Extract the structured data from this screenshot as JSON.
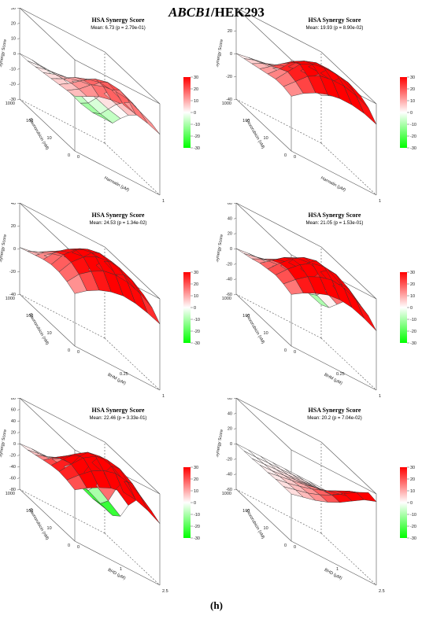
{
  "header": {
    "gene": "ABCB1",
    "cell_line": "/HEK293"
  },
  "figure_label": "(h)",
  "colorbar": {
    "ticks": [
      "30",
      "20",
      "10",
      "0",
      "-10",
      "-20",
      "-30"
    ],
    "max_color": "#ff0000",
    "min_color": "#00ff00"
  },
  "chart_data": [
    {
      "type": "surface3d",
      "title": "HSA Synergy Score",
      "subtitle": "Mean: 6.73 (p = 2.79e-01)",
      "zlabel": "Synergy Score",
      "xlabel": "Daunorubicin (nM)",
      "ylabel": "Harmalin (μM)",
      "zticks": [
        "30",
        "20",
        "10",
        "0",
        "-10",
        "-20",
        "-30"
      ],
      "zlim": [
        -30,
        30
      ],
      "xticks": [
        "1000",
        "100",
        "10",
        "0"
      ],
      "yticks": [
        "0",
        "1"
      ],
      "values": [
        [
          6,
          10,
          14,
          16,
          17,
          15,
          13,
          10
        ],
        [
          5,
          10,
          17,
          20,
          21,
          20,
          16,
          12
        ],
        [
          4,
          9,
          15,
          20,
          22,
          21,
          17,
          12
        ],
        [
          3,
          7,
          12,
          15,
          17,
          16,
          12,
          8
        ],
        [
          2,
          5,
          7,
          9,
          10,
          9,
          6,
          3
        ],
        [
          1,
          3,
          4,
          4,
          3,
          1,
          -2,
          -4
        ],
        [
          0,
          1,
          1,
          0,
          -3,
          -7,
          -10,
          -12
        ],
        [
          0,
          0,
          -1,
          -4,
          -8,
          -12,
          -14,
          -14
        ]
      ]
    },
    {
      "type": "surface3d",
      "title": "HSA Synergy Score",
      "subtitle": "Mean: 19.93 (p = 8.90e-02)",
      "zlabel": "Synergy Score",
      "xlabel": "Doxorubicin (nM)",
      "ylabel": "Harmalin (μM)",
      "zticks": [
        "40",
        "20",
        "0",
        "-20",
        "-40"
      ],
      "zlim": [
        -40,
        40
      ],
      "xticks": [
        "1000",
        "100",
        "10",
        "0"
      ],
      "yticks": [
        "0",
        "1"
      ],
      "values": [
        [
          8,
          16,
          22,
          26,
          28,
          28,
          26,
          22
        ],
        [
          10,
          20,
          30,
          36,
          38,
          38,
          35,
          30
        ],
        [
          10,
          22,
          34,
          40,
          42,
          42,
          40,
          34
        ],
        [
          8,
          18,
          30,
          36,
          40,
          40,
          38,
          32
        ],
        [
          6,
          14,
          22,
          28,
          30,
          30,
          28,
          24
        ],
        [
          4,
          10,
          14,
          18,
          20,
          20,
          18,
          14
        ],
        [
          2,
          6,
          8,
          10,
          11,
          11,
          10,
          8
        ],
        [
          0,
          2,
          3,
          4,
          4,
          4,
          3,
          2
        ]
      ]
    },
    {
      "type": "surface3d",
      "title": "HSA Synergy Score",
      "subtitle": "Mean: 24.53 (p = 1.34e-02)",
      "zlabel": "Synergy Score",
      "xlabel": "Daunorubicin (nM)",
      "ylabel": "BHM (μM)",
      "zticks": [
        "40",
        "20",
        "0",
        "-20",
        "-40"
      ],
      "zlim": [
        -40,
        40
      ],
      "xticks": [
        "1000",
        "100",
        "10",
        "0"
      ],
      "yticks": [
        "0",
        "0.25",
        "1"
      ],
      "values": [
        [
          6,
          14,
          20,
          24,
          26,
          25,
          22,
          18
        ],
        [
          10,
          22,
          30,
          36,
          38,
          37,
          33,
          26
        ],
        [
          12,
          26,
          36,
          42,
          44,
          43,
          38,
          30
        ],
        [
          12,
          26,
          36,
          42,
          44,
          42,
          36,
          28
        ],
        [
          10,
          22,
          30,
          36,
          38,
          36,
          30,
          22
        ],
        [
          7,
          16,
          22,
          26,
          28,
          26,
          22,
          16
        ],
        [
          4,
          9,
          13,
          16,
          17,
          16,
          13,
          9
        ],
        [
          1,
          3,
          5,
          6,
          6,
          6,
          5,
          3
        ]
      ]
    },
    {
      "type": "surface3d",
      "title": "HSA Synergy Score",
      "subtitle": "Mean: 21.05 (p = 1.53e-01)",
      "zlabel": "Synergy Score",
      "xlabel": "Doxorubicin (nM)",
      "ylabel": "BHM (μM)",
      "zticks": [
        "60",
        "40",
        "20",
        "0",
        "-20",
        "-40",
        "-60"
      ],
      "zlim": [
        -60,
        60
      ],
      "xticks": [
        "1000",
        "100",
        "10",
        "0"
      ],
      "yticks": [
        "0",
        "0.25",
        "1"
      ],
      "values": [
        [
          8,
          18,
          26,
          32,
          34,
          32,
          26,
          18
        ],
        [
          12,
          26,
          38,
          46,
          50,
          48,
          40,
          28
        ],
        [
          14,
          30,
          44,
          54,
          58,
          56,
          46,
          32
        ],
        [
          12,
          28,
          42,
          52,
          56,
          52,
          42,
          28
        ],
        [
          10,
          22,
          34,
          42,
          44,
          40,
          30,
          18
        ],
        [
          6,
          14,
          22,
          26,
          26,
          22,
          14,
          4
        ],
        [
          3,
          7,
          10,
          12,
          10,
          6,
          -2,
          -10
        ],
        [
          0,
          2,
          3,
          2,
          0,
          -4,
          -10,
          -16
        ]
      ]
    },
    {
      "type": "surface3d",
      "title": "HSA Synergy Score",
      "subtitle": "Mean: 22.46 (p = 3.33e-01)",
      "zlabel": "Synergy Score",
      "xlabel": "Daunorubicin (nM)",
      "ylabel": "BHD (μM)",
      "zticks": [
        "80",
        "60",
        "40",
        "20",
        "0",
        "-20",
        "-40",
        "-60",
        "-80"
      ],
      "zlim": [
        -80,
        80
      ],
      "xticks": [
        "1000",
        "100",
        "10",
        "0"
      ],
      "yticks": [
        "0",
        "1",
        "2.5"
      ],
      "values": [
        [
          10,
          24,
          36,
          46,
          50,
          48,
          40,
          28
        ],
        [
          14,
          34,
          52,
          64,
          70,
          66,
          54,
          36
        ],
        [
          16,
          40,
          62,
          76,
          80,
          76,
          62,
          40
        ],
        [
          14,
          36,
          56,
          70,
          74,
          68,
          52,
          30
        ],
        [
          10,
          26,
          40,
          50,
          50,
          42,
          26,
          8
        ],
        [
          6,
          14,
          22,
          24,
          20,
          8,
          -8,
          -24
        ],
        [
          2,
          6,
          8,
          6,
          -2,
          -14,
          -26,
          -36
        ],
        [
          0,
          2,
          2,
          -2,
          -10,
          -20,
          -30,
          -36
        ]
      ]
    },
    {
      "type": "surface3d",
      "title": "HSA Synergy Score",
      "subtitle": "Mean: 20.2 (p = 7.04e-02)",
      "zlabel": "Synergy Score",
      "xlabel": "Doxorubicin (nM)",
      "ylabel": "BHD (μM)",
      "zticks": [
        "60",
        "40",
        "20",
        "0",
        "-20",
        "-40",
        "-60"
      ],
      "zlim": [
        -60,
        60
      ],
      "xticks": [
        "1000",
        "100",
        "10",
        "0"
      ],
      "yticks": [
        "0",
        "1",
        "2.5"
      ],
      "values": [
        [
          2,
          6,
          10,
          16,
          24,
          34,
          44,
          50
        ],
        [
          2,
          6,
          10,
          16,
          24,
          34,
          44,
          52
        ],
        [
          2,
          5,
          9,
          14,
          20,
          28,
          36,
          42
        ],
        [
          1,
          4,
          7,
          10,
          14,
          18,
          22,
          26
        ],
        [
          1,
          2,
          4,
          6,
          8,
          10,
          12,
          14
        ],
        [
          0,
          1,
          2,
          3,
          4,
          5,
          6,
          6
        ],
        [
          0,
          0,
          1,
          1,
          2,
          2,
          2,
          2
        ],
        [
          0,
          0,
          0,
          0,
          0,
          0,
          0,
          0
        ]
      ]
    }
  ]
}
